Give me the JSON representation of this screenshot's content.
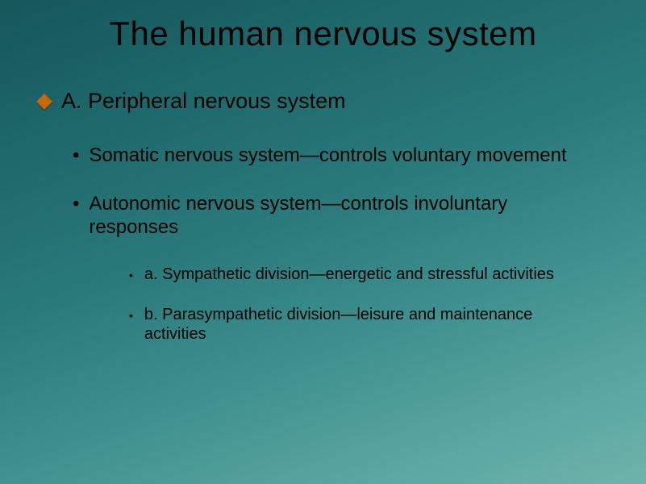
{
  "slide": {
    "title": "The human nervous system",
    "background_gradient_start": "#16575a",
    "background_gradient_end": "#6fb3ab",
    "title_color": "#000000",
    "title_fontsize": 42,
    "text_color": "#000000",
    "bullet_level1_color": "#cc6600",
    "level1_fontsize": 27,
    "level2_fontsize": 24,
    "level3_fontsize": 20,
    "items": {
      "l1_0": "A.  Peripheral nervous system",
      "l2_0": "Somatic nervous system—controls voluntary movement",
      "l2_1": "Autonomic nervous system—controls involuntary responses",
      "l3_0": "a.  Sympathetic division—energetic and stressful activities",
      "l3_1": "b.  Parasympathetic division—leisure and maintenance activities"
    }
  }
}
